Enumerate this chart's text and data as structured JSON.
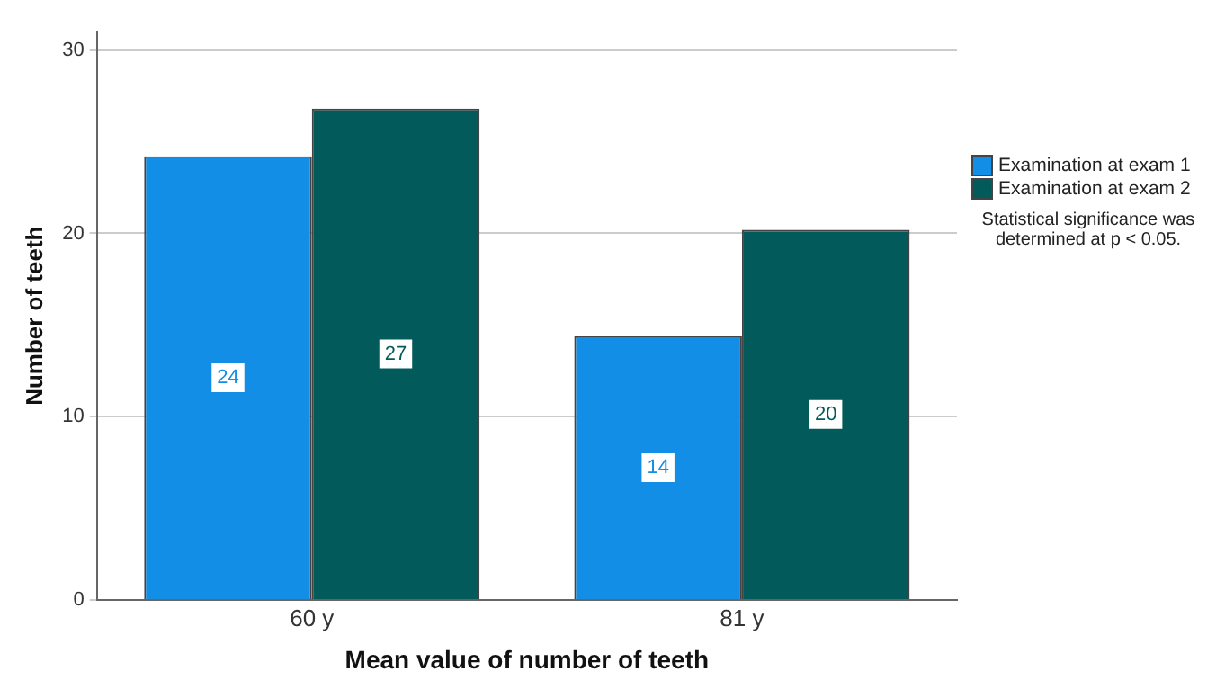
{
  "chart_data": {
    "type": "bar",
    "xlabel": "Mean value of number of teeth",
    "ylabel": "Number of teeth",
    "categories": [
      "60 y",
      "81 y"
    ],
    "series": [
      {
        "name": "Examination at exam 1",
        "color": "#128ee6",
        "values": [
          24.2,
          14.4
        ],
        "value_labels": [
          "24",
          "14"
        ]
      },
      {
        "name": "Examination at exam 2",
        "color": "#035a5a",
        "values": [
          26.8,
          20.2
        ],
        "value_labels": [
          "27",
          "20"
        ]
      }
    ],
    "ylim": [
      0,
      31
    ],
    "yticks": [
      0,
      10,
      20,
      30
    ],
    "grid": "y",
    "legend": "right",
    "annotations": [
      "Statistical significance was determined at p < 0.05."
    ]
  }
}
